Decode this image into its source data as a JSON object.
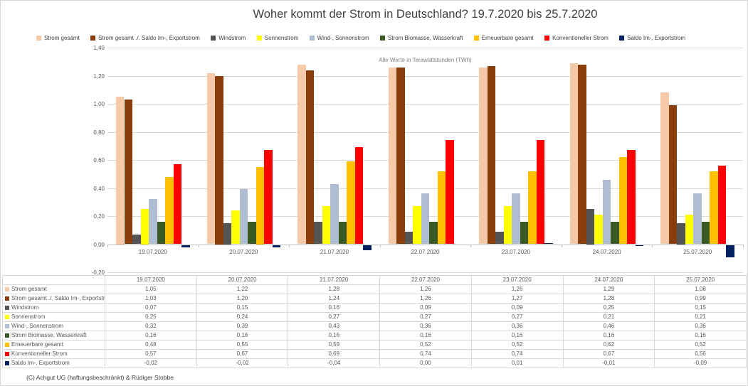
{
  "page": {
    "title": "Woher kommt der Strom in Deutschland? 19.7.2020 bis 25.7.2020",
    "annotation": "Alle Werte in Terawattstunden (TWh)",
    "footer": "(C) Achgut UG (haftungsbeschränkt) & Rüdiger Stobbe"
  },
  "chart_data": {
    "type": "bar",
    "title": "Woher kommt der Strom in Deutschland? 19.7.2020 bis 25.7.2020",
    "subtitle": "Alle Werte in Terawattstunden (TWh)",
    "legend_position": "top",
    "grid": true,
    "ylim": [
      -0.2,
      1.4
    ],
    "ytick_step": 0.2,
    "yticklabels": [
      "1,40",
      "1,20",
      "1,00",
      "0,80",
      "0,60",
      "0,40",
      "0,20",
      "0,00",
      "-0,20"
    ],
    "categories": [
      "19.07.2020",
      "20.07.2020",
      "21.07.2020",
      "22.07.2020",
      "23.07.2020",
      "24.07.2020",
      "25.07.2020"
    ],
    "series": [
      {
        "name": "Strom gesamt",
        "color": "#F6C9A8",
        "values": [
          1.05,
          1.22,
          1.28,
          1.26,
          1.26,
          1.29,
          1.08
        ]
      },
      {
        "name": "Strom gesamt ./. Saldo Im-, Exportstrom",
        "color": "#883D0B",
        "values": [
          1.03,
          1.2,
          1.24,
          1.26,
          1.27,
          1.28,
          0.99
        ]
      },
      {
        "name": "Windstrom",
        "color": "#545454",
        "values": [
          0.07,
          0.15,
          0.16,
          0.09,
          0.09,
          0.25,
          0.15
        ]
      },
      {
        "name": "Sonnenstrom",
        "color": "#FFFF00",
        "values": [
          0.25,
          0.24,
          0.27,
          0.27,
          0.27,
          0.21,
          0.21
        ]
      },
      {
        "name": "Wind-, Sonnenstrom",
        "color": "#AEBDD1",
        "values": [
          0.32,
          0.39,
          0.43,
          0.36,
          0.36,
          0.46,
          0.36
        ]
      },
      {
        "name": "Strom Biomasse, Wasserkraft",
        "color": "#3A5A23",
        "values": [
          0.16,
          0.16,
          0.16,
          0.16,
          0.16,
          0.16,
          0.16
        ]
      },
      {
        "name": "Erneuerbare gesamt",
        "color": "#FFC000",
        "values": [
          0.48,
          0.55,
          0.59,
          0.52,
          0.52,
          0.62,
          0.52
        ]
      },
      {
        "name": "Konventioneller Strom",
        "color": "#FF0000",
        "values": [
          0.57,
          0.67,
          0.69,
          0.74,
          0.74,
          0.67,
          0.56
        ]
      },
      {
        "name": "Saldo Im-, Exportstrom",
        "color": "#002060",
        "values": [
          -0.02,
          -0.02,
          -0.04,
          0.0,
          0.01,
          -0.01,
          -0.09
        ]
      }
    ]
  }
}
